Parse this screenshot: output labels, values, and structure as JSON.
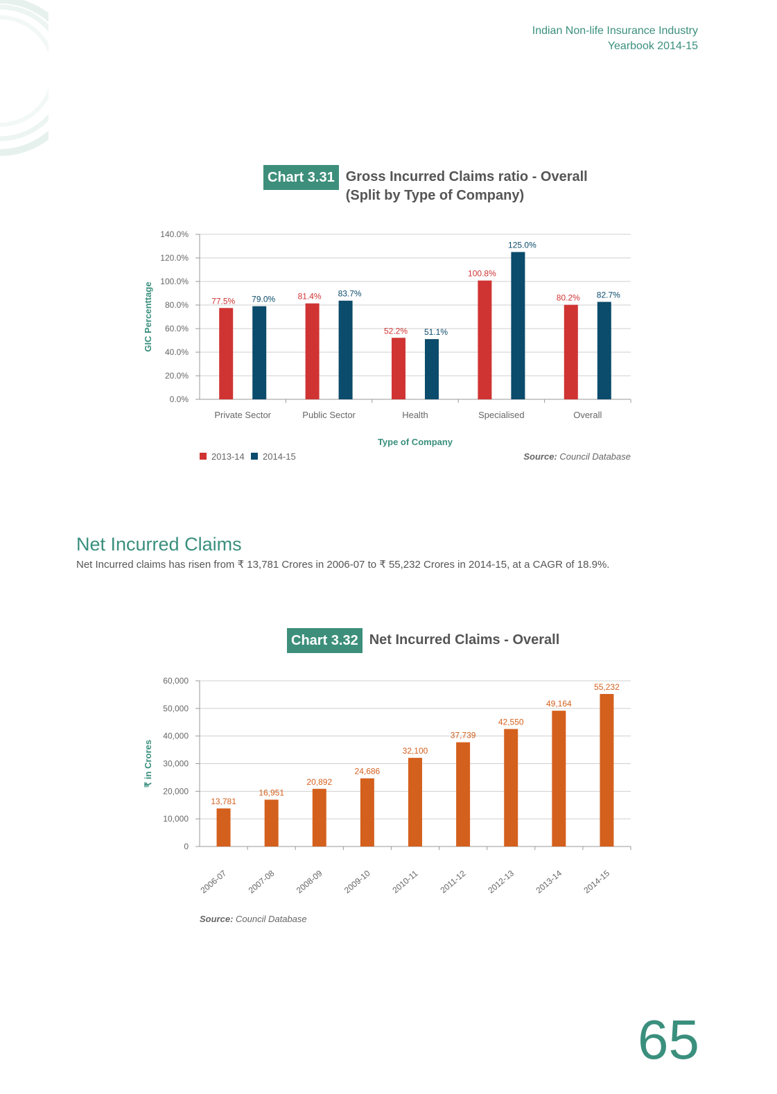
{
  "header": {
    "line1": "Indian Non-life Insurance Industry",
    "line2": "Yearbook 2014-15"
  },
  "charts_text": {
    "c1_badge": "Chart 3.31",
    "c1_title1": "Gross Incurred Claims ratio - Overall",
    "c1_title2": "(Split by Type of Company)",
    "c2_badge": "Chart 3.32",
    "c2_title": "Net Incurred Claims - Overall"
  },
  "section": {
    "title": "Net Incurred Claims",
    "text": "Net Incurred claims has risen from ₹ 13,781 Crores in 2006-07 to  ₹ 55,232 Crores in 2014-15, at a CAGR of 18.9%."
  },
  "page_number": "65",
  "colors": {
    "accent": "#3a8f7d",
    "series_2013_14": "#cf3433",
    "series_2014_15": "#0b4b6b",
    "net_claims": "#d4601e"
  },
  "chart_data": [
    {
      "type": "bar",
      "title": "Gross Incurred Claims ratio - Overall (Split by Type of Company)",
      "xlabel": "Type of Company",
      "ylabel": "GIC Percenttage",
      "categories": [
        "Private Sector",
        "Public Sector",
        "Health",
        "Specialised",
        "Overall"
      ],
      "series": [
        {
          "name": "2013-14",
          "values": [
            77.5,
            81.4,
            52.2,
            100.8,
            80.2
          ],
          "labels": [
            "77.5%",
            "81.4%",
            "52.2%",
            "100.8%",
            "80.2%"
          ]
        },
        {
          "name": "2014-15",
          "values": [
            79.0,
            83.7,
            51.1,
            125.0,
            82.7
          ],
          "labels": [
            "79.0%",
            "83.7%",
            "51.1%",
            "125.0%",
            "82.7%"
          ]
        }
      ],
      "ylim": [
        0,
        140
      ],
      "yticks": [
        "0.0%",
        "20.0%",
        "40.0%",
        "60.0%",
        "80.0%",
        "100.0%",
        "120.0%",
        "140.0%"
      ],
      "grid": true,
      "legend": "bottom-left",
      "source_label": "Source:",
      "source_text": "Council Database"
    },
    {
      "type": "bar",
      "title": "Net Incurred Claims - Overall",
      "xlabel": "",
      "ylabel": "₹ in Crores",
      "categories": [
        "2006-07",
        "2007-08",
        "2008-09",
        "2009-10",
        "2010-11",
        "2011-12",
        "2012-13",
        "2013-14",
        "2014-15"
      ],
      "values": [
        13781,
        16951,
        20892,
        24686,
        32100,
        37739,
        42550,
        49164,
        55232
      ],
      "labels": [
        "13,781",
        "16,951",
        "20,892",
        "24,686",
        "32,100",
        "37,739",
        "42,550",
        "49,164",
        "55,232"
      ],
      "ylim": [
        0,
        60000
      ],
      "yticks": [
        "0",
        "10,000",
        "20,000",
        "30,000",
        "40,000",
        "50,000",
        "60,000"
      ],
      "grid": true,
      "source_label": "Source:",
      "source_text": "Council Database"
    }
  ]
}
